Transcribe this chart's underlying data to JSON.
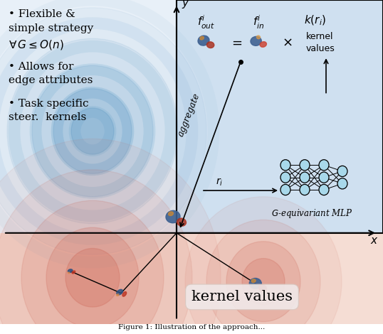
{
  "bg_color": "#ffffff",
  "panel_bg": "#d6e8f5",
  "lower_bg": "#f5e0d8",
  "blue_ring_color": "#7aaed0",
  "red_ring_color": "#d98070",
  "axis_color": "#000000",
  "bullet1_line1": "• Flexible &",
  "bullet1_line2": "simple strategy",
  "bullet1_line3": "$\\forall\\, G \\leq O(n)$",
  "bullet2": "• Allows for\nedge attributes",
  "bullet3": "• Task specific\nsteer. kernels",
  "label_fout": "$f_{out}^{i}$",
  "label_fin": "$f_{in}^{i}$",
  "label_k": "$k(r_i)$",
  "label_eq": "$=$",
  "label_times": "$\\times$",
  "label_kernel": "kernel\nvalues",
  "label_aggregate": "aggregate",
  "label_ri": "$r_i$",
  "label_mlp": "$G$-equivariant MLP",
  "label_bottom": "kernel values",
  "label_x": "$x$",
  "label_y": "$y$",
  "caption": "Figure 1: Illustration of the approach...",
  "blob_blue": "#3a5a8a",
  "blob_red": "#b83020",
  "blob_orange": "#c86828",
  "blob_lightblue": "#7090c0"
}
